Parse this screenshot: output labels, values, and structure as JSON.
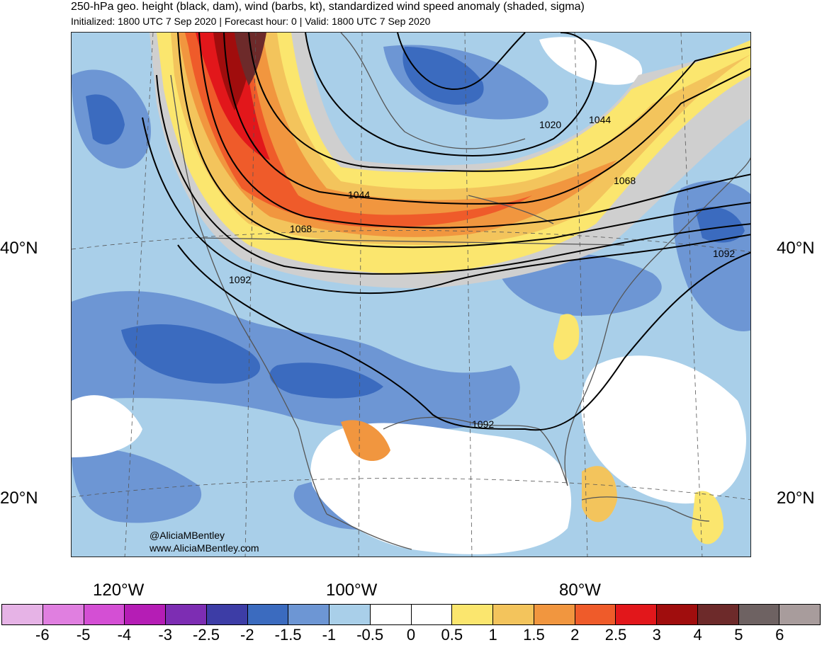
{
  "title": "250-hPa geo. height (black, dam), wind (barbs, kt), standardized wind speed anomaly (shaded, sigma)",
  "subtitle": "Initialized: 1800 UTC 7 Sep 2020 | Forecast hour: 0 | Valid: 1800 UTC 7 Sep 2020",
  "lat_labels": [
    "40°N",
    "20°N"
  ],
  "lon_labels": [
    "120°W",
    "100°W",
    "80°W"
  ],
  "contour_labels": [
    "1020",
    "1044",
    "1044",
    "1068",
    "1068",
    "1092",
    "1092",
    "1092"
  ],
  "credit": {
    "handle": "@AliciaMBentley",
    "site": "www.AliciaMBentley.com"
  },
  "colorbar": {
    "colors": [
      "#e6b3e6",
      "#e07fe0",
      "#d44fd4",
      "#b51db5",
      "#7d2db3",
      "#3d3da6",
      "#3b6bbf",
      "#6d96d4",
      "#a9cfe9",
      "#ffffff",
      "#ffffff",
      "#fbe66e",
      "#f3c45c",
      "#f1963f",
      "#ef5b2a",
      "#e2171b",
      "#a00d0d",
      "#6d2a2a",
      "#6e6262",
      "#a89c9c"
    ],
    "ticks": [
      "-6",
      "-5",
      "-4",
      "-3",
      "-2.5",
      "-2",
      "-1.5",
      "-1",
      "-0.5",
      "0",
      "0.5",
      "1",
      "1.5",
      "2",
      "2.5",
      "3",
      "4",
      "5",
      "6"
    ]
  }
}
